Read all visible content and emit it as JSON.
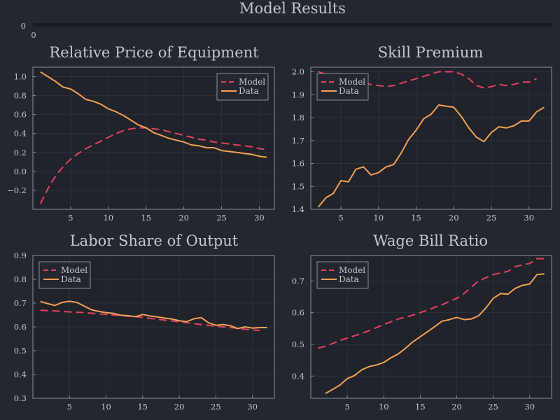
{
  "page": {
    "title": "Model Results",
    "background": "#242730",
    "text_color": "#c3c6ce",
    "grid_color": "#2d3039",
    "frame_color": "#8c8f98"
  },
  "header_strip": {
    "ytick_label": "0",
    "xtick_label": "0"
  },
  "chart_data": [
    {
      "type": "line",
      "title": "Relative Price of Equipment",
      "xlabel": "",
      "ylabel": "",
      "xlim": [
        0,
        32
      ],
      "ylim": [
        -0.4,
        1.1
      ],
      "xticks": [
        5,
        10,
        15,
        20,
        25,
        30
      ],
      "yticks": [
        -0.2,
        0.0,
        0.2,
        0.4,
        0.6,
        0.8,
        1.0
      ],
      "ytick_labels": [
        "−0.2",
        "0.0",
        "0.2",
        "0.4",
        "0.6",
        "0.8",
        "1.0"
      ],
      "grid": true,
      "legend_position": "top-right",
      "series": [
        {
          "name": "Model",
          "style": "dashed",
          "color": "#e5415f",
          "x": [
            1,
            2,
            3,
            4,
            5,
            6,
            7,
            8,
            9,
            10,
            11,
            12,
            13,
            14,
            15,
            16,
            17,
            18,
            19,
            20,
            21,
            22,
            23,
            24,
            25,
            26,
            27,
            28,
            29,
            30,
            31
          ],
          "y": [
            -0.34,
            -0.18,
            -0.05,
            0.05,
            0.13,
            0.19,
            0.24,
            0.28,
            0.32,
            0.36,
            0.4,
            0.43,
            0.45,
            0.46,
            0.46,
            0.45,
            0.44,
            0.42,
            0.4,
            0.38,
            0.36,
            0.34,
            0.33,
            0.31,
            0.3,
            0.29,
            0.28,
            0.27,
            0.26,
            0.24,
            0.23
          ]
        },
        {
          "name": "Data",
          "style": "solid",
          "color": "#f2a055",
          "x": [
            1,
            2,
            3,
            4,
            5,
            6,
            7,
            8,
            9,
            10,
            11,
            12,
            13,
            14,
            15,
            16,
            17,
            18,
            19,
            20,
            21,
            22,
            23,
            24,
            25,
            26,
            27,
            28,
            29,
            30,
            31
          ],
          "y": [
            1.05,
            1.0,
            0.95,
            0.89,
            0.87,
            0.82,
            0.76,
            0.74,
            0.71,
            0.66,
            0.63,
            0.59,
            0.54,
            0.49,
            0.46,
            0.41,
            0.38,
            0.35,
            0.33,
            0.31,
            0.28,
            0.27,
            0.25,
            0.25,
            0.22,
            0.21,
            0.2,
            0.19,
            0.18,
            0.16,
            0.15
          ]
        }
      ]
    },
    {
      "type": "line",
      "title": "Skill Premium",
      "xlabel": "",
      "ylabel": "",
      "xlim": [
        1,
        33
      ],
      "ylim": [
        1.4,
        2.02
      ],
      "xticks": [
        5,
        10,
        15,
        20,
        25,
        30
      ],
      "yticks": [
        1.4,
        1.5,
        1.6,
        1.7,
        1.8,
        1.9,
        2.0
      ],
      "ytick_labels": [
        "1.4",
        "1.5",
        "1.6",
        "1.7",
        "1.8",
        "1.9",
        "2.0"
      ],
      "grid": true,
      "legend_position": "top-left",
      "series": [
        {
          "name": "Model",
          "style": "dashed",
          "color": "#e5415f",
          "x": [
            2,
            3,
            4,
            5,
            6,
            7,
            8,
            9,
            10,
            11,
            12,
            13,
            14,
            15,
            16,
            17,
            18,
            19,
            20,
            21,
            22,
            23,
            24,
            25,
            26,
            27,
            28,
            29,
            30,
            31
          ],
          "y": [
            2.0,
            1.99,
            1.98,
            1.97,
            1.96,
            1.95,
            1.95,
            1.945,
            1.94,
            1.935,
            1.94,
            1.95,
            1.96,
            1.97,
            1.98,
            1.99,
            2.0,
            2.0,
            2.0,
            1.99,
            1.97,
            1.94,
            1.93,
            1.935,
            1.945,
            1.94,
            1.945,
            1.955,
            1.955,
            1.97
          ]
        },
        {
          "name": "Data",
          "style": "solid",
          "color": "#f2a055",
          "x": [
            2,
            3,
            4,
            5,
            6,
            7,
            8,
            9,
            10,
            11,
            12,
            13,
            14,
            15,
            16,
            17,
            18,
            19,
            20,
            21,
            22,
            23,
            24,
            25,
            26,
            27,
            28,
            29,
            30,
            31,
            32
          ],
          "y": [
            1.41,
            1.45,
            1.47,
            1.525,
            1.52,
            1.575,
            1.585,
            1.55,
            1.56,
            1.585,
            1.595,
            1.645,
            1.705,
            1.745,
            1.795,
            1.815,
            1.855,
            1.85,
            1.845,
            1.805,
            1.755,
            1.715,
            1.695,
            1.735,
            1.76,
            1.755,
            1.765,
            1.785,
            1.785,
            1.825,
            1.845
          ]
        }
      ]
    },
    {
      "type": "line",
      "title": "Labor Share of Output",
      "xlabel": "",
      "ylabel": "",
      "xlim": [
        0,
        33
      ],
      "ylim": [
        0.3,
        0.9
      ],
      "xticks": [
        5,
        10,
        15,
        20,
        25,
        30
      ],
      "yticks": [
        0.3,
        0.4,
        0.5,
        0.6,
        0.7,
        0.8,
        0.9
      ],
      "ytick_labels": [
        "0.3",
        "0.4",
        "0.5",
        "0.6",
        "0.7",
        "0.8",
        "0.9"
      ],
      "grid": true,
      "legend_position": "top-left",
      "series": [
        {
          "name": "Model",
          "style": "dashed",
          "color": "#e5415f",
          "x": [
            1,
            3,
            5,
            7,
            9,
            11,
            13,
            15,
            17,
            19,
            21,
            23,
            25,
            27,
            29,
            31
          ],
          "y": [
            0.67,
            0.667,
            0.663,
            0.66,
            0.655,
            0.65,
            0.645,
            0.64,
            0.632,
            0.625,
            0.618,
            0.61,
            0.603,
            0.597,
            0.59,
            0.585
          ]
        },
        {
          "name": "Data",
          "style": "solid",
          "color": "#f2a055",
          "x": [
            1,
            2,
            3,
            4,
            5,
            6,
            7,
            8,
            9,
            10,
            11,
            12,
            13,
            14,
            15,
            16,
            17,
            18,
            19,
            20,
            21,
            22,
            23,
            24,
            25,
            26,
            27,
            28,
            29,
            30,
            31,
            32
          ],
          "y": [
            0.707,
            0.698,
            0.69,
            0.703,
            0.708,
            0.703,
            0.688,
            0.672,
            0.665,
            0.66,
            0.657,
            0.649,
            0.647,
            0.643,
            0.652,
            0.646,
            0.642,
            0.637,
            0.633,
            0.626,
            0.622,
            0.634,
            0.639,
            0.617,
            0.607,
            0.61,
            0.605,
            0.593,
            0.6,
            0.595,
            0.597,
            0.597
          ]
        }
      ]
    },
    {
      "type": "line",
      "title": "Wage Bill Ratio",
      "xlabel": "",
      "ylabel": "",
      "xlim": [
        0,
        33
      ],
      "ylim": [
        0.33,
        0.78
      ],
      "xticks": [
        5,
        10,
        15,
        20,
        25,
        30
      ],
      "yticks": [
        0.4,
        0.5,
        0.6,
        0.7
      ],
      "ytick_labels": [
        "0.4",
        "0.5",
        "0.6",
        "0.7"
      ],
      "grid": true,
      "legend_position": "top-left",
      "series": [
        {
          "name": "Model",
          "style": "dashed",
          "color": "#e5415f",
          "x": [
            1,
            2,
            3,
            4,
            5,
            6,
            7,
            8,
            9,
            10,
            11,
            12,
            13,
            14,
            15,
            16,
            17,
            18,
            19,
            20,
            21,
            22,
            23,
            24,
            25,
            26,
            27,
            28,
            29,
            30,
            31,
            32
          ],
          "y": [
            0.488,
            0.494,
            0.503,
            0.512,
            0.52,
            0.527,
            0.535,
            0.543,
            0.553,
            0.563,
            0.571,
            0.58,
            0.586,
            0.592,
            0.6,
            0.608,
            0.617,
            0.625,
            0.635,
            0.645,
            0.66,
            0.68,
            0.7,
            0.71,
            0.72,
            0.725,
            0.73,
            0.745,
            0.75,
            0.755,
            0.77,
            0.77
          ]
        },
        {
          "name": "Data",
          "style": "solid",
          "color": "#f2a055",
          "x": [
            2,
            3,
            4,
            5,
            6,
            7,
            8,
            9,
            10,
            11,
            12,
            13,
            14,
            15,
            16,
            17,
            18,
            19,
            20,
            21,
            22,
            23,
            24,
            25,
            26,
            27,
            28,
            29,
            30,
            31,
            32
          ],
          "y": [
            0.345,
            0.358,
            0.372,
            0.392,
            0.402,
            0.42,
            0.43,
            0.435,
            0.443,
            0.458,
            0.47,
            0.488,
            0.508,
            0.524,
            0.54,
            0.556,
            0.573,
            0.578,
            0.585,
            0.578,
            0.58,
            0.59,
            0.615,
            0.645,
            0.66,
            0.658,
            0.676,
            0.686,
            0.69,
            0.72,
            0.722
          ]
        }
      ]
    }
  ]
}
